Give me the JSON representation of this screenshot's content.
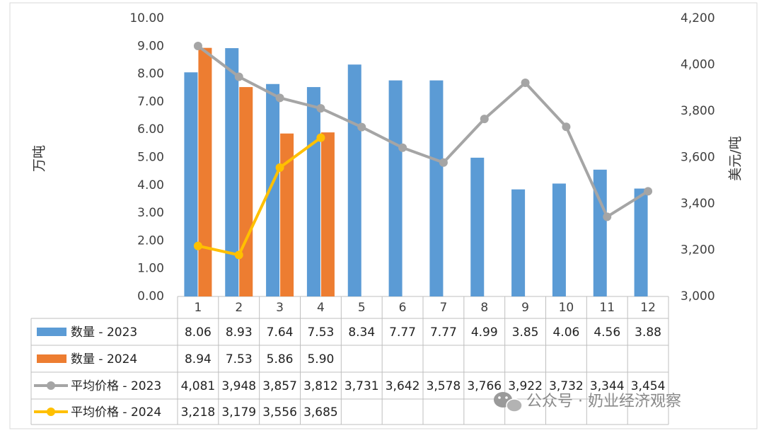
{
  "chart_data": {
    "type": "bar+line+table",
    "categories": [
      "1",
      "2",
      "3",
      "4",
      "5",
      "6",
      "7",
      "8",
      "9",
      "10",
      "11",
      "12"
    ],
    "y_left": {
      "label": "万吨",
      "range": [
        0,
        10
      ],
      "ticks": [
        "0.00",
        "1.00",
        "2.00",
        "3.00",
        "4.00",
        "5.00",
        "6.00",
        "7.00",
        "8.00",
        "9.00",
        "10.00"
      ]
    },
    "y_right": {
      "label": "美元/吨",
      "range": [
        3000,
        4200
      ],
      "ticks": [
        "3,000",
        "3,200",
        "3,400",
        "3,600",
        "3,800",
        "4,000",
        "4,200"
      ]
    },
    "bar_series": [
      {
        "name": "数量 - 2023",
        "color": "#5B9BD5",
        "values": [
          8.06,
          8.93,
          7.64,
          7.53,
          8.34,
          7.77,
          7.77,
          4.99,
          3.85,
          4.06,
          4.56,
          3.88
        ],
        "labels": [
          "8.06",
          "8.93",
          "7.64",
          "7.53",
          "8.34",
          "7.77",
          "7.77",
          "4.99",
          "3.85",
          "4.06",
          "4.56",
          "3.88"
        ]
      },
      {
        "name": "数量 - 2024",
        "color": "#ED7D31",
        "values": [
          8.94,
          7.53,
          5.86,
          5.9
        ],
        "labels": [
          "8.94",
          "7.53",
          "5.86",
          "5.90"
        ]
      }
    ],
    "line_series": [
      {
        "name": "平均价格 - 2023",
        "color": "#A5A5A5",
        "values": [
          4081,
          3948,
          3857,
          3812,
          3731,
          3642,
          3578,
          3766,
          3922,
          3732,
          3344,
          3454
        ],
        "labels": [
          "4,081",
          "3,948",
          "3,857",
          "3,812",
          "3,731",
          "3,642",
          "3,578",
          "3,766",
          "3,922",
          "3,732",
          "3,344",
          "3,454"
        ]
      },
      {
        "name": "平均价格 - 2024",
        "color": "#FFC000",
        "values": [
          3218,
          3179,
          3556,
          3685
        ],
        "labels": [
          "3,218",
          "3,179",
          "3,556",
          "3,685"
        ]
      }
    ]
  },
  "watermark": "公众号 · 奶业经济观察"
}
